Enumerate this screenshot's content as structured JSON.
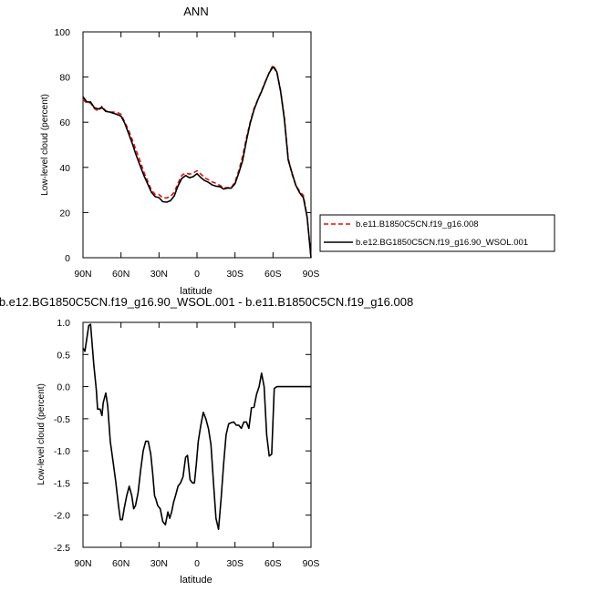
{
  "chart_data": [
    {
      "type": "line",
      "title": "ANN",
      "xlabel": "latitude",
      "ylabel": "Low-level cloud (percent)",
      "xlim": [
        90,
        -90
      ],
      "ylim": [
        0,
        100
      ],
      "x_ticks": [
        90,
        60,
        30,
        0,
        -30,
        -60,
        -90
      ],
      "x_tick_labels": [
        "90N",
        "60N",
        "30N",
        "0",
        "30S",
        "60S",
        "90S"
      ],
      "y_ticks": [
        0,
        20,
        40,
        60,
        80,
        100
      ],
      "y_tick_labels": [
        "0",
        "20",
        "40",
        "60",
        "80",
        "100"
      ],
      "legend_position": "right, outside plot",
      "x": [
        90,
        87,
        84,
        81,
        78,
        75,
        72,
        69,
        66,
        63,
        60,
        57,
        54,
        51,
        48,
        45,
        42,
        39,
        36,
        33,
        30,
        27,
        24,
        21,
        18,
        15,
        12,
        9,
        6,
        3,
        0,
        -3,
        -6,
        -9,
        -12,
        -15,
        -18,
        -21,
        -24,
        -27,
        -30,
        -33,
        -36,
        -39,
        -42,
        -45,
        -48,
        -51,
        -54,
        -57,
        -60,
        -63,
        -66,
        -69,
        -72,
        -75,
        -78,
        -81,
        -84,
        -87,
        -90
      ],
      "series": [
        {
          "name": "b.e11.B1850C5CN.f19_g16.008",
          "color": "#e01010",
          "dash": "dashed",
          "values": [
            70,
            68.5,
            68.5,
            66,
            65,
            67,
            65,
            64.5,
            64.5,
            64.3,
            63.5,
            60,
            56.5,
            52,
            47.5,
            43,
            38,
            34,
            30,
            28,
            28,
            26.5,
            26.5,
            27,
            29,
            33,
            36.5,
            37.5,
            37,
            37.5,
            38.5,
            37,
            35.5,
            34.5,
            33.5,
            33,
            32,
            31,
            31,
            31,
            33.5,
            38.5,
            45,
            53,
            60,
            66,
            70,
            74,
            78,
            82,
            85.3,
            82.5,
            74,
            62,
            44,
            37,
            32,
            29.5,
            27.5,
            18,
            0
          ]
        },
        {
          "name": "b.e12.BG1850C5CN.f19_g16.90_WSOL.001",
          "color": "#000000",
          "dash": "solid",
          "values": [
            71.3,
            69,
            69,
            66.4,
            65.8,
            66.5,
            64.8,
            64.5,
            64,
            63.4,
            62.7,
            59.5,
            55,
            50.4,
            45.4,
            40.9,
            36.5,
            32.8,
            29,
            27,
            26.6,
            24.8,
            24.6,
            25.2,
            27.3,
            31.8,
            35.1,
            36.4,
            35.4,
            35.9,
            37.2,
            35.5,
            34.2,
            33.4,
            32.2,
            31.7,
            31.5,
            30.4,
            30.8,
            30.8,
            32.8,
            37.5,
            43,
            51.8,
            59.5,
            65.5,
            69.9,
            73.6,
            77.9,
            81.9,
            84.5,
            82.3,
            73.6,
            61.3,
            43.3,
            37.5,
            32.1,
            28.8,
            26.5,
            17.8,
            0
          ]
        }
      ]
    },
    {
      "type": "line",
      "title": "b.e12.BG1850C5CN.f19_g16.90_WSOL.001 - b.e11.B1850C5CN.f19_g16.008",
      "xlabel": "latitude",
      "ylabel": "Low-level cloud (percent)",
      "xlim": [
        90,
        -90
      ],
      "ylim": [
        -2.5,
        1.0
      ],
      "x_ticks": [
        90,
        60,
        30,
        0,
        -30,
        -60,
        -90
      ],
      "x_tick_labels": [
        "90N",
        "60N",
        "30N",
        "0",
        "30S",
        "60S",
        "90S"
      ],
      "y_ticks": [
        1.0,
        0.5,
        0.0,
        -0.5,
        -1.0,
        -1.5,
        -2.0,
        -2.5
      ],
      "y_tick_labels": [
        "1.0",
        "0.5",
        "0.0",
        "-0.5",
        "-1.0",
        "-1.5",
        "-2.0",
        "-2.5"
      ],
      "series": [
        {
          "color": "#000000",
          "x": [
            90,
            88.5,
            87,
            85.5,
            84,
            81.5,
            79.5,
            78.5,
            76.5,
            75,
            74,
            72,
            70.5,
            68.5,
            66,
            64,
            62,
            60.5,
            59,
            57.5,
            55.5,
            53.5,
            51.5,
            50,
            48.5,
            46.5,
            44.5,
            42.5,
            40.5,
            38.5,
            36.5,
            35,
            33.5,
            32.5,
            31,
            29,
            27,
            25,
            23,
            21.5,
            20,
            18.5,
            17,
            15,
            13,
            11,
            9,
            7.5,
            5.5,
            3.5,
            2,
            0.5,
            -1,
            -3,
            -5,
            -7,
            -9,
            -11,
            -13,
            -15,
            -17,
            -19,
            -21,
            -23,
            -25,
            -27,
            -29,
            -31,
            -33,
            -35,
            -37,
            -39,
            -41,
            -43,
            -45,
            -47,
            -49,
            -51,
            -53,
            -55,
            -57,
            -59,
            -61,
            -63,
            -65,
            -67,
            -69,
            -71,
            -73,
            -75,
            -77,
            -79,
            -81,
            -83,
            -85,
            -87,
            -89,
            -90
          ],
          "values": [
            0.6,
            0.55,
            0.75,
            0.95,
            0.97,
            0.35,
            -0.05,
            -0.35,
            -0.35,
            -0.45,
            -0.25,
            -0.1,
            -0.3,
            -0.85,
            -1.2,
            -1.5,
            -1.85,
            -2.07,
            -2.07,
            -1.9,
            -1.7,
            -1.55,
            -1.7,
            -1.9,
            -1.85,
            -1.65,
            -1.3,
            -1.0,
            -0.85,
            -0.85,
            -1.05,
            -1.35,
            -1.7,
            -1.75,
            -1.85,
            -1.9,
            -2.1,
            -2.15,
            -1.95,
            -2.05,
            -1.95,
            -1.8,
            -1.7,
            -1.55,
            -1.5,
            -1.4,
            -1.1,
            -1.07,
            -1.45,
            -1.5,
            -1.5,
            -1.2,
            -0.85,
            -0.6,
            -0.4,
            -0.5,
            -0.65,
            -0.9,
            -1.5,
            -2.05,
            -2.22,
            -1.75,
            -1.2,
            -0.75,
            -0.58,
            -0.56,
            -0.55,
            -0.6,
            -0.6,
            -0.65,
            -0.55,
            -0.55,
            -0.65,
            -0.33,
            -0.32,
            -0.12,
            0.0,
            0.21,
            0.0,
            -0.75,
            -1.08,
            -1.05,
            -0.03,
            0.0,
            0.0,
            0.0,
            0.0,
            0.0,
            0.0,
            0.0,
            0.0,
            0.0,
            0.0,
            0.0,
            0.0,
            0.0,
            0.0,
            0.0
          ]
        }
      ]
    }
  ]
}
